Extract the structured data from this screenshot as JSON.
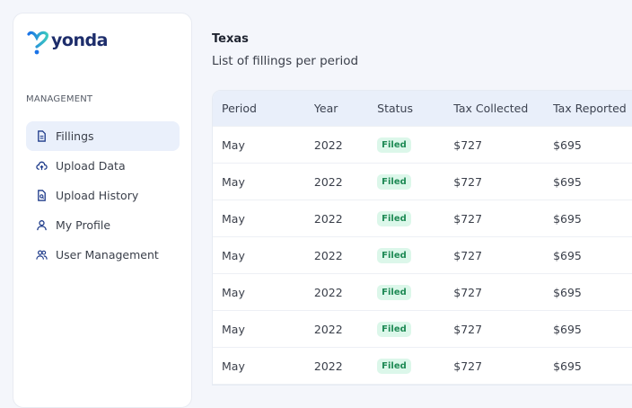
{
  "brand": {
    "name": "yonda",
    "colors": {
      "primary": "#1d2d6b",
      "accent": "#1a73e8",
      "teal": "#3cc9c0"
    }
  },
  "sidebar": {
    "section_label": "MANAGEMENT",
    "items": [
      {
        "label": "Fillings",
        "icon": "document-icon",
        "active": true
      },
      {
        "label": "Upload Data",
        "icon": "cloud-upload-icon"
      },
      {
        "label": "Upload History",
        "icon": "file-search-icon"
      },
      {
        "label": "My Profile",
        "icon": "user-icon"
      },
      {
        "label": "User Management",
        "icon": "users-icon"
      }
    ]
  },
  "main": {
    "title": "Texas",
    "subtitle": "List of fillings per period",
    "table": {
      "headers": [
        "Period",
        "Year",
        "Status",
        "Tax Collected",
        "Tax Reported"
      ],
      "rows": [
        [
          "May",
          "2022",
          "Filed",
          "$727",
          "$695"
        ],
        [
          "May",
          "2022",
          "Filed",
          "$727",
          "$695"
        ],
        [
          "May",
          "2022",
          "Filed",
          "$727",
          "$695"
        ],
        [
          "May",
          "2022",
          "Filed",
          "$727",
          "$695"
        ],
        [
          "May",
          "2022",
          "Filed",
          "$727",
          "$695"
        ],
        [
          "May",
          "2022",
          "Filed",
          "$727",
          "$695"
        ],
        [
          "May",
          "2022",
          "Filed",
          "$727",
          "$695"
        ]
      ]
    }
  }
}
